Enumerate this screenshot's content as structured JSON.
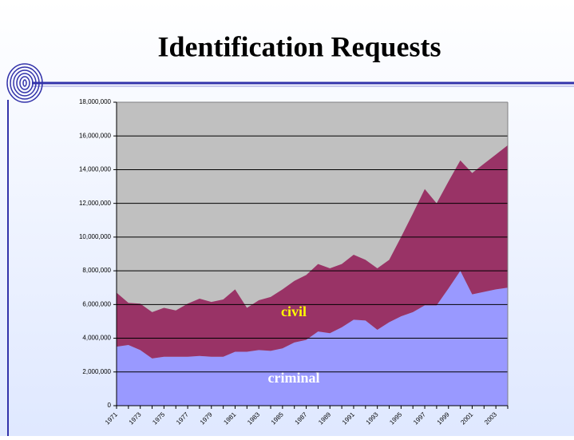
{
  "chart_data": {
    "type": "stacked-area",
    "title": "Identification Requests",
    "categories": [
      "1971",
      null,
      "1973",
      null,
      "1975",
      null,
      "1977",
      null,
      "1979",
      null,
      "1981",
      null,
      "1983",
      null,
      "1985",
      null,
      "1987",
      null,
      "1989",
      null,
      "1991",
      null,
      "1993",
      null,
      "1995",
      null,
      "1997",
      null,
      "1999",
      null,
      "2001",
      null,
      "2003",
      null
    ],
    "series": [
      {
        "name": "criminal",
        "color": "#9999ff",
        "values": [
          3500000,
          3600000,
          3300000,
          2800000,
          2900000,
          2900000,
          2900000,
          2950000,
          2900000,
          2900000,
          3200000,
          3200000,
          3300000,
          3250000,
          3400000,
          3750000,
          3900000,
          4400000,
          4300000,
          4650000,
          5100000,
          5050000,
          4500000,
          4950000,
          5300000,
          5550000,
          5950000,
          5950000,
          6950000,
          8000000,
          6600000,
          6750000,
          6900000,
          7000000
        ]
      },
      {
        "name": "civil",
        "color": "#993366",
        "values": [
          3200000,
          2500000,
          2750000,
          2750000,
          2900000,
          2750000,
          3150000,
          3400000,
          3250000,
          3400000,
          3700000,
          2600000,
          2950000,
          3200000,
          3500000,
          3650000,
          3850000,
          4000000,
          3850000,
          3750000,
          3850000,
          3600000,
          3650000,
          3700000,
          4700000,
          5850000,
          6900000,
          6050000,
          6350000,
          6550000,
          7200000,
          7600000,
          8000000,
          8450000
        ]
      }
    ],
    "ylim": [
      0,
      18000000
    ],
    "yticks": [
      0,
      {
        "value": 2000000,
        "label": "2,000,000"
      },
      {
        "value": 4000000,
        "label": "4,000,000"
      },
      {
        "value": 6000000,
        "label": "6,000,000"
      },
      {
        "value": 8000000,
        "label": "8,000,000"
      },
      {
        "value": 10000000,
        "label": "10,000,000"
      },
      {
        "value": 12000000,
        "label": "12,000,000"
      },
      {
        "value": 14000000,
        "label": "14,000,000"
      },
      {
        "value": 16000000,
        "label": "16,000,000"
      },
      {
        "value": 18000000,
        "label": "18,000,000"
      }
    ],
    "grid": true,
    "plot_background": "#c0c0c0"
  }
}
